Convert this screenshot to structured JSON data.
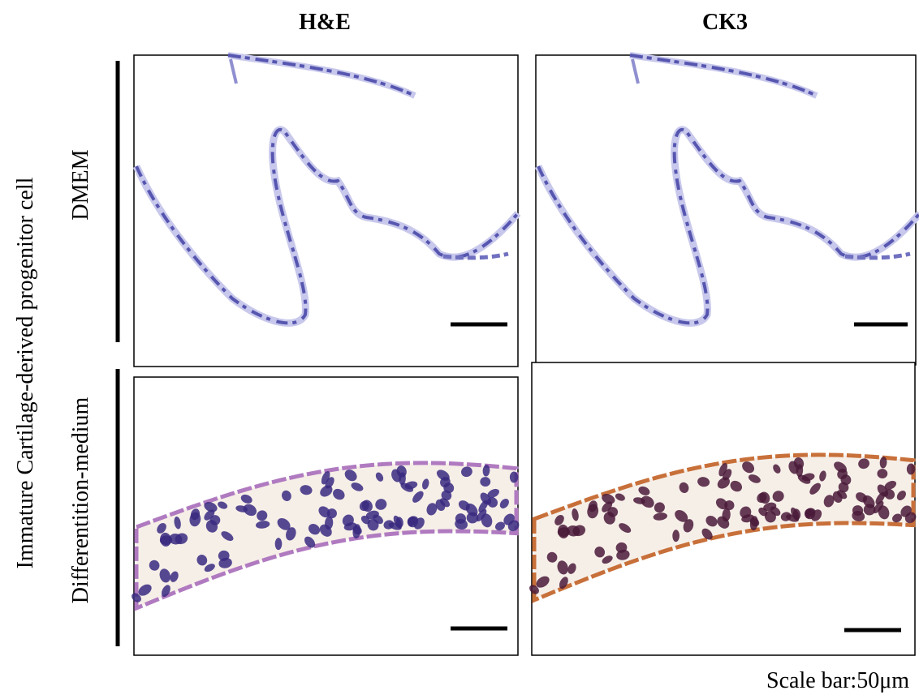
{
  "columns": [
    "H&E",
    "CK3"
  ],
  "side_label": "Immature Cartilage-derived progenitor cell",
  "rows": [
    "DMEM",
    "Differentition-medium"
  ],
  "scale_note": "Scale bar:50μm"
}
